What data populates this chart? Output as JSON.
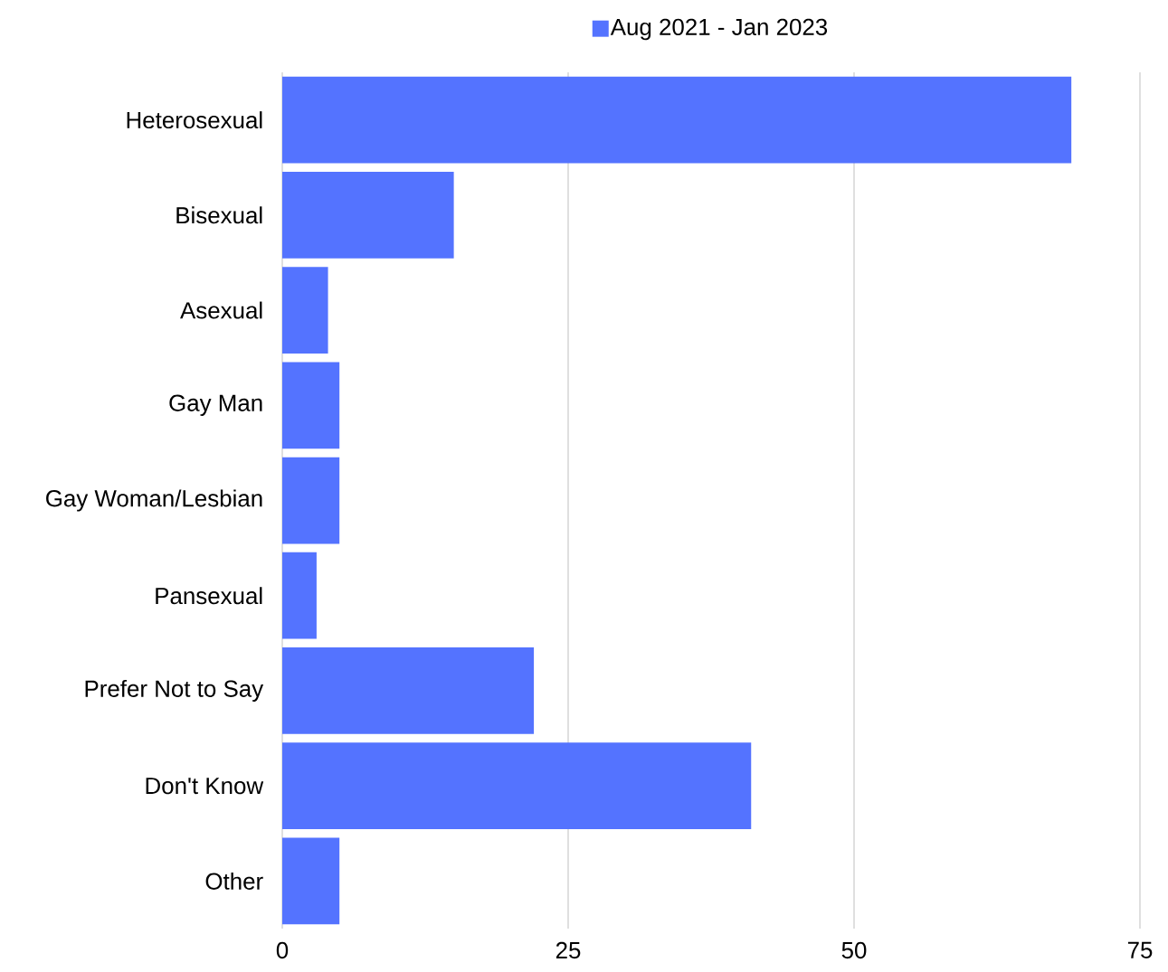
{
  "chart_data": {
    "type": "bar",
    "orientation": "horizontal",
    "categories": [
      "Heterosexual",
      "Bisexual",
      "Asexual",
      "Gay Man",
      "Gay Woman/Lesbian",
      "Pansexual",
      "Prefer Not to Say",
      "Don't Know",
      "Other"
    ],
    "series": [
      {
        "name": "Aug 2021 - Jan 2023",
        "color": "#5473ff",
        "values": [
          69,
          15,
          4,
          5,
          5,
          3,
          22,
          41,
          5
        ]
      }
    ],
    "xlim": [
      0,
      75
    ],
    "xticks": [
      0,
      25,
      50,
      75
    ],
    "grid": "x",
    "legend": "top"
  }
}
